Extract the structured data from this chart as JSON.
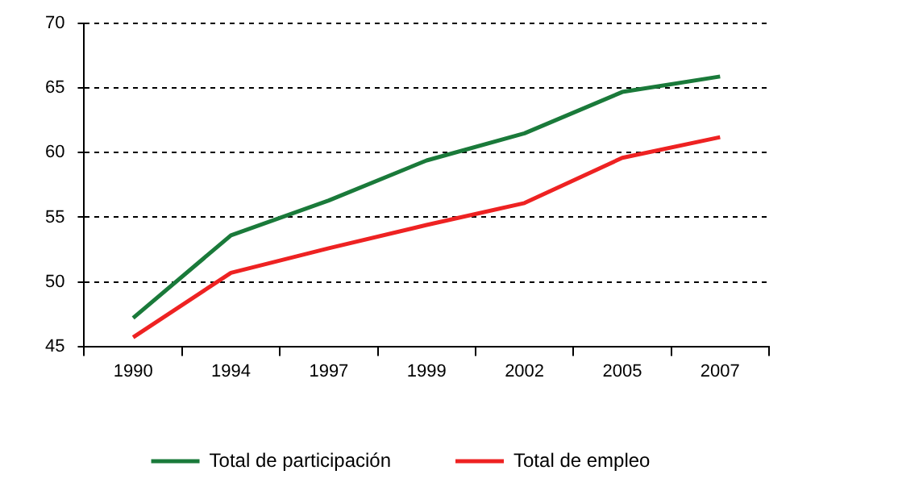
{
  "chart_data": {
    "type": "line",
    "categories": [
      "1990",
      "1994",
      "1997",
      "1999",
      "2002",
      "2005",
      "2007"
    ],
    "series": [
      {
        "name": "Total de participación",
        "color": "#1a7a3a",
        "values": [
          47.2,
          53.6,
          56.3,
          59.4,
          61.5,
          64.7,
          65.9
        ]
      },
      {
        "name": "Total de empleo",
        "color": "#ee2222",
        "values": [
          45.7,
          50.7,
          52.6,
          54.4,
          56.1,
          59.6,
          61.2
        ]
      }
    ],
    "ylim": [
      45,
      70
    ],
    "yticks": [
      45,
      50,
      55,
      60,
      65,
      70
    ],
    "grid": "y",
    "legend": "bottom",
    "marker": "none",
    "line_style": "solid"
  }
}
